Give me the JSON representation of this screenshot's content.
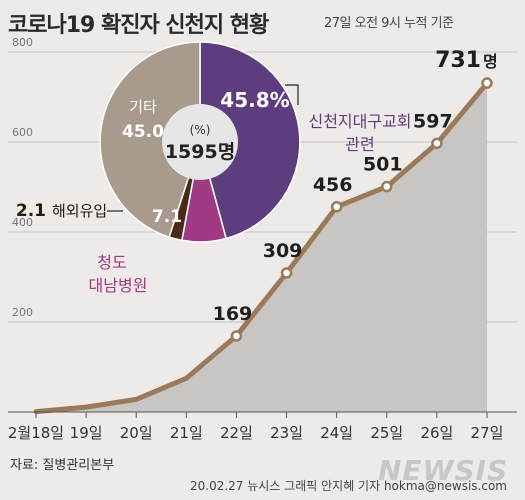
{
  "header": {
    "title": "코로나19 확진자 신천지 현황",
    "subtitle": "27일 오전 9시 누적 기준"
  },
  "footer": {
    "source": "자료: 질병관리본부",
    "credit": "20.02.27  뉴시스 그래픽  안지혜 기자  hokma@newsis.com",
    "watermark": "NEWSIS"
  },
  "colors": {
    "background": "#eeeae7",
    "area_fill": "#c9c5c2",
    "line": "#9b7a5c",
    "marker_fill": "#ffffff",
    "pie_shincheonji": "#5e3d7e",
    "pie_cheongdo": "#a13a84",
    "pie_overseas": "#4a2a18",
    "pie_other": "#a89a8d",
    "pie_center": "#e6e6e6"
  },
  "chart_data": [
    {
      "type": "area",
      "title": "",
      "xlabel": "",
      "ylabel": "",
      "categories": [
        "2월18일",
        "19일",
        "20일",
        "21일",
        "22일",
        "23일",
        "24일",
        "25일",
        "26일",
        "27일"
      ],
      "values": [
        1,
        11,
        28,
        75,
        169,
        309,
        456,
        501,
        597,
        731
      ],
      "data_labels": [
        {
          "index": 4,
          "text": "169"
        },
        {
          "index": 5,
          "text": "309"
        },
        {
          "index": 6,
          "text": "456"
        },
        {
          "index": 7,
          "text": "501"
        },
        {
          "index": 8,
          "text": "597"
        },
        {
          "index": 9,
          "text": "731",
          "unit": "명"
        }
      ],
      "ylim": [
        0,
        900
      ],
      "yticks": [
        200,
        400,
        600,
        800
      ],
      "grid": true
    },
    {
      "type": "pie",
      "title": "",
      "center_unit": "(%)",
      "center_total": "1595명",
      "slices": [
        {
          "label": "신천지대구교회 관련",
          "value": 45.8,
          "value_text": "45.8%"
        },
        {
          "label": "청도 대남병원",
          "value": 7.1,
          "value_text": "7.1"
        },
        {
          "label": "해외유입",
          "value": 2.1,
          "value_text": "2.1"
        },
        {
          "label": "기타",
          "value": 45.0,
          "value_text": "45.0"
        }
      ]
    }
  ]
}
